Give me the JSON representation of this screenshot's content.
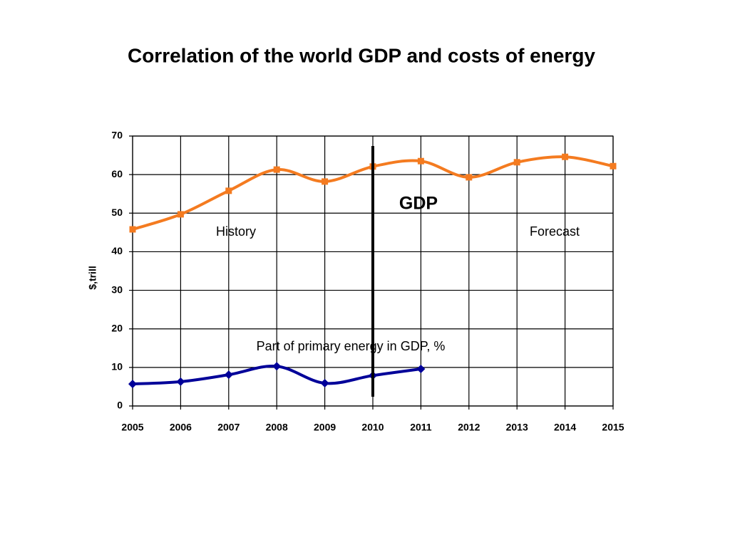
{
  "chart_data": {
    "type": "line",
    "title": "Correlation of the world  GDP and costs of energy",
    "y_label": "$,trill",
    "x": [
      2005,
      2006,
      2007,
      2008,
      2009,
      2010,
      2011,
      2012,
      2013,
      2014,
      2015
    ],
    "series": [
      {
        "name": "GDP",
        "color": "#f47b20",
        "marker": "square",
        "values": [
          45.8,
          49.7,
          55.8,
          61.3,
          58.2,
          62.1,
          63.5,
          59.3,
          63.2,
          64.6,
          62.2
        ]
      },
      {
        "name": "Part of primary energy in GDP, %",
        "color": "#000099",
        "marker": "diamond",
        "values": [
          5.7,
          6.3,
          8.1,
          10.3,
          5.9,
          7.9,
          9.6,
          null,
          null,
          null,
          null
        ]
      }
    ],
    "annotations": [
      "History",
      "Forecast"
    ],
    "divider_x": 2010,
    "xlim": [
      2005,
      2015
    ],
    "xticks": [
      2005,
      2006,
      2007,
      2008,
      2009,
      2010,
      2011,
      2012,
      2013,
      2014,
      2015
    ],
    "ylim": [
      0,
      70
    ],
    "yticks": [
      0,
      10,
      20,
      30,
      40,
      50,
      60,
      70
    ],
    "grid": true
  }
}
